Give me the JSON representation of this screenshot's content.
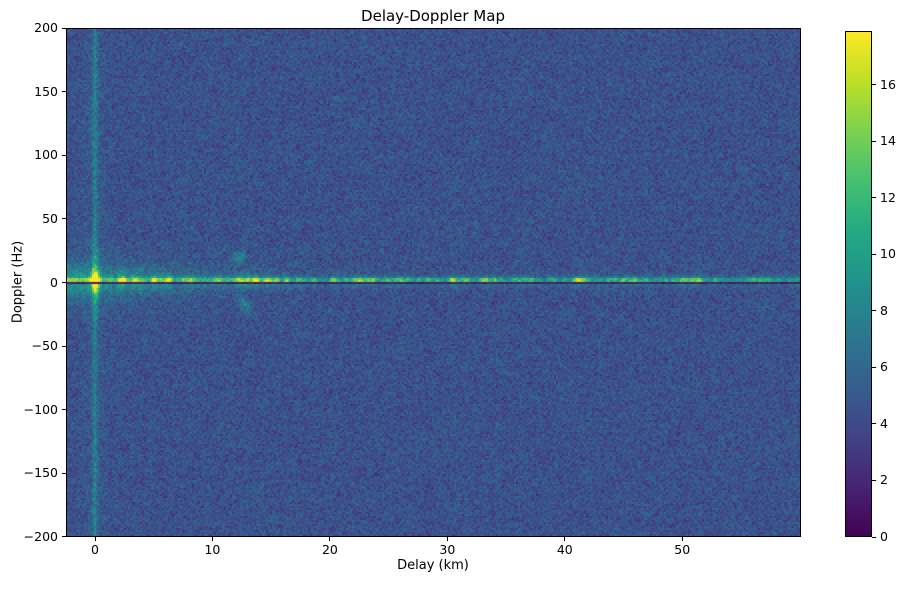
{
  "chart_data": {
    "type": "heatmap",
    "title": "Delay-Doppler Map",
    "xlabel": "Delay (km)",
    "ylabel": "Doppler (Hz)",
    "xlim": [
      -2.5,
      60.1
    ],
    "ylim": [
      -200,
      200
    ],
    "xticks": [
      0,
      10,
      20,
      30,
      40,
      50
    ],
    "yticks": [
      200,
      150,
      100,
      50,
      0,
      -50,
      -100,
      -150,
      -200
    ],
    "grid": false,
    "colormap": "viridis",
    "colormap_stops": [
      "#440154",
      "#482475",
      "#414487",
      "#355f8d",
      "#2a788e",
      "#21918c",
      "#22a884",
      "#44bf70",
      "#7ad151",
      "#bddf26",
      "#fde725"
    ],
    "colorbar": {
      "vmin": 0,
      "vmax": 17.9,
      "ticks": [
        0,
        2,
        4,
        6,
        8,
        10,
        12,
        14,
        16
      ]
    },
    "features": {
      "background_noise": {
        "mean": 4.5,
        "std": 1.7
      },
      "direct_path_peak": {
        "delay_km": 0,
        "doppler_hz": 0,
        "value": 17.9
      },
      "zero_delay_stripe": {
        "delay_km": 0,
        "spans": "all Doppler",
        "amplitude": 3
      },
      "zero_doppler_ridge": {
        "doppler_hz": 0,
        "peak_value": 14,
        "fades_with_delay": true
      },
      "zero_doppler_notch": {
        "doppler_hz": 0,
        "value": 1,
        "spans": "all delays"
      },
      "echo_upper": {
        "delay_km": 12.3,
        "doppler_hz": 20,
        "amplitude": 3.4
      },
      "echo_lower_streak": {
        "delay_km": 12.7,
        "doppler_hz": -18,
        "amplitude": 3.1
      }
    },
    "noise_seed": 42
  }
}
